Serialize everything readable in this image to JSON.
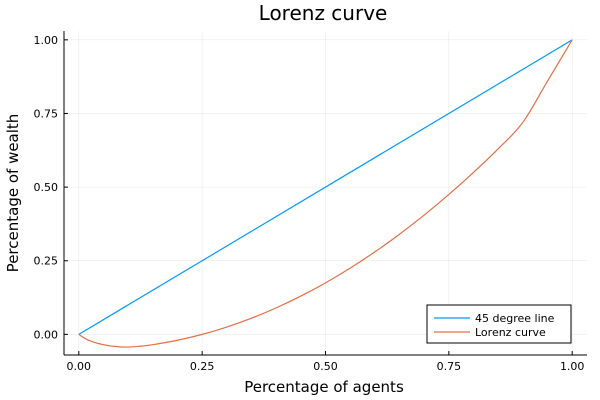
{
  "chart_data": {
    "type": "line",
    "title": "Lorenz curve",
    "xlabel": "Percentage of agents",
    "ylabel": "Percentage of wealth",
    "xlim": [
      -0.03,
      1.03
    ],
    "ylim": [
      -0.07,
      1.03
    ],
    "xticks": [
      0.0,
      0.25,
      0.5,
      0.75,
      1.0
    ],
    "xtick_labels": [
      "0.00",
      "0.25",
      "0.50",
      "0.75",
      "1.00"
    ],
    "yticks": [
      0.0,
      0.25,
      0.5,
      0.75,
      1.0
    ],
    "ytick_labels": [
      "0.00",
      "0.25",
      "0.50",
      "0.75",
      "1.00"
    ],
    "grid": true,
    "legend_position": "bottom-right",
    "series": [
      {
        "name": "45 degree line",
        "color": "#009AFA",
        "x": [
          0.0,
          1.0
        ],
        "y": [
          0.0,
          1.0
        ]
      },
      {
        "name": "Lorenz curve",
        "color": "#E36F47",
        "x": [
          0.0,
          0.02,
          0.05,
          0.08,
          0.1,
          0.12,
          0.15,
          0.2,
          0.25,
          0.3,
          0.35,
          0.4,
          0.45,
          0.5,
          0.55,
          0.6,
          0.65,
          0.7,
          0.75,
          0.8,
          0.85,
          0.9,
          0.95,
          1.0
        ],
        "y": [
          0.0,
          -0.02,
          -0.035,
          -0.042,
          -0.043,
          -0.041,
          -0.035,
          -0.02,
          0.0,
          0.025,
          0.055,
          0.09,
          0.13,
          0.175,
          0.225,
          0.28,
          0.34,
          0.405,
          0.475,
          0.55,
          0.63,
          0.72,
          0.86,
          1.0
        ]
      }
    ]
  }
}
